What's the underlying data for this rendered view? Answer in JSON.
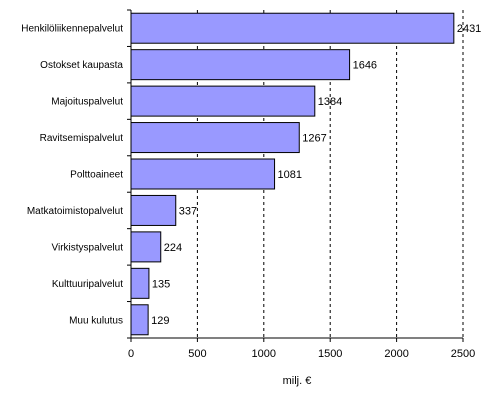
{
  "chart_data": {
    "type": "bar",
    "orientation": "horizontal",
    "title": "",
    "categories": [
      "Henkilöliikennepalvelut",
      "Ostokset kaupasta",
      "Majoituspalvelut",
      "Ravitsemispalvelut",
      "Polttoaineet",
      "Matkatoimistopalvelut",
      "Virkistyspalvelut",
      "Kulttuuripalvelut",
      "Muu kulutus"
    ],
    "values": [
      2431,
      1646,
      1384,
      1267,
      1081,
      337,
      224,
      135,
      129
    ],
    "value_labels": [
      "2431",
      "1646",
      "1384",
      "1267",
      "1081",
      "337",
      "224",
      "135",
      "129"
    ],
    "xlabel": "milj. €",
    "ylabel": "",
    "xlim": [
      0,
      2500
    ],
    "xticks": [
      0,
      500,
      1000,
      1500,
      2000,
      2500
    ],
    "xtick_labels": [
      "0",
      "500",
      "1000",
      "1500",
      "2000",
      "2500"
    ],
    "grid": "vertical dashed",
    "legend": "none",
    "colors": {
      "bar_fill": "#9999ff",
      "bar_stroke": "#000000",
      "grid": "#000000",
      "axis": "#000000"
    }
  }
}
